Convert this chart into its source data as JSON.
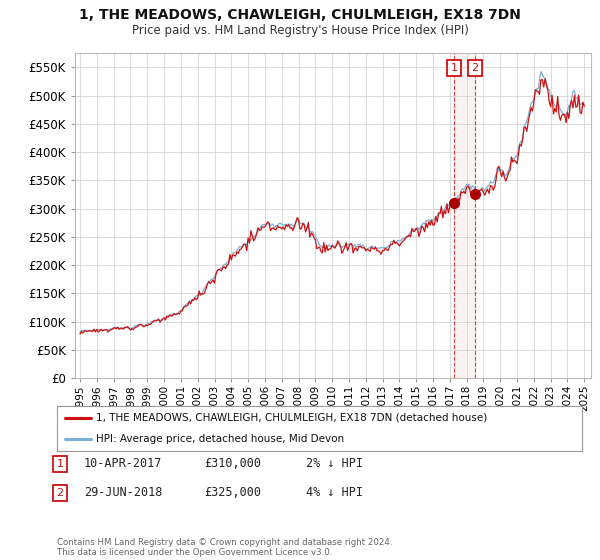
{
  "title_line1": "1, THE MEADOWS, CHAWLEIGH, CHULMLEIGH, EX18 7DN",
  "title_line2": "Price paid vs. HM Land Registry's House Price Index (HPI)",
  "ytick_values": [
    0,
    50000,
    100000,
    150000,
    200000,
    250000,
    300000,
    350000,
    400000,
    450000,
    500000,
    550000
  ],
  "ylim": [
    0,
    575000
  ],
  "xlim_left": 1994.7,
  "xlim_right": 2025.4,
  "hpi_color": "#7bafd4",
  "price_color": "#cc1111",
  "marker_dot_color": "#aa0000",
  "vline_color": "#cc3333",
  "shade_color": "#e8d0d0",
  "legend_line1": "1, THE MEADOWS, CHAWLEIGH, CHULMLEIGH, EX18 7DN (detached house)",
  "legend_line2": "HPI: Average price, detached house, Mid Devon",
  "footer": "Contains HM Land Registry data © Crown copyright and database right 2024.\nThis data is licensed under the Open Government Licence v3.0.",
  "background_color": "#ffffff",
  "grid_color": "#cccccc",
  "transaction1_date": 2017.27,
  "transaction2_date": 2018.49,
  "transaction1_value": 310000,
  "transaction2_value": 325000,
  "hpi_at_t1": 316000,
  "hpi_at_t2": 338000
}
